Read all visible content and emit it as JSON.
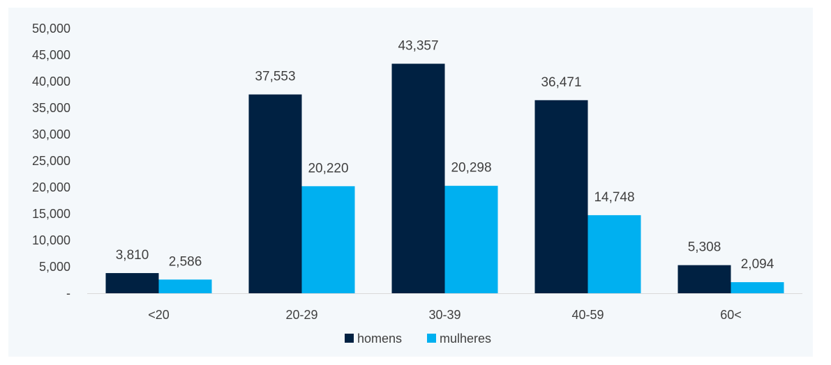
{
  "chart_data": {
    "type": "bar",
    "categories": [
      "<20",
      "20-29",
      "30-39",
      "40-59",
      "60<"
    ],
    "series": [
      {
        "name": "homens",
        "values": [
          3810,
          37553,
          43357,
          36471,
          5308
        ],
        "color": "#002142"
      },
      {
        "name": "mulheres",
        "values": [
          2586,
          20220,
          20298,
          14748,
          2094
        ],
        "color": "#00b0f0"
      }
    ],
    "value_labels": {
      "homens": [
        "3,810",
        "37,553",
        "43,357",
        "36,471",
        "5,308"
      ],
      "mulheres": [
        "2,586",
        "20,220",
        "20,298",
        "14,748",
        "2,094"
      ]
    },
    "y_ticks": [
      {
        "value": 0,
        "label": "-"
      },
      {
        "value": 5000,
        "label": "5,000"
      },
      {
        "value": 10000,
        "label": "10,000"
      },
      {
        "value": 15000,
        "label": "15,000"
      },
      {
        "value": 20000,
        "label": "20,000"
      },
      {
        "value": 25000,
        "label": "25,000"
      },
      {
        "value": 30000,
        "label": "30,000"
      },
      {
        "value": 35000,
        "label": "35,000"
      },
      {
        "value": 40000,
        "label": "40,000"
      },
      {
        "value": 45000,
        "label": "45,000"
      },
      {
        "value": 50000,
        "label": "50,000"
      }
    ],
    "ylim": [
      0,
      50000
    ],
    "title": "",
    "xlabel": "",
    "ylabel": "",
    "grid": false,
    "legend_position": "bottom",
    "axis_color": "#d9d9d9",
    "background": "#f4f8fb"
  }
}
